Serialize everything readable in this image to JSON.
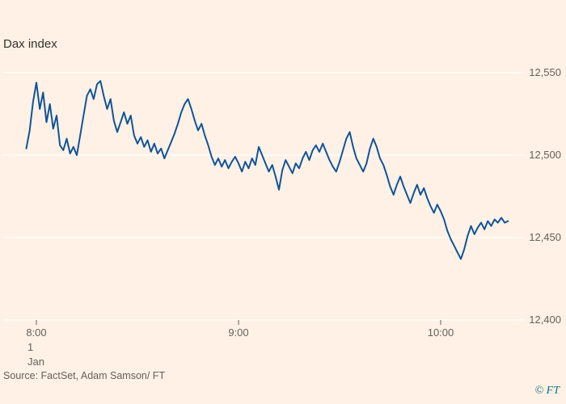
{
  "title": "Dax index",
  "source": "Source: FactSet, Adam Samson/ FT",
  "copyright": "© FT",
  "colors": {
    "background": "#FFF1E5",
    "line": "#0F5499",
    "grid": "#FFFFFF",
    "text": "#66605C",
    "title_text": "#33302E",
    "tick": "#66605C",
    "copyright": "#0D7680"
  },
  "chart_data": {
    "type": "line",
    "title": "Dax index",
    "xlabel": "",
    "ylabel": "",
    "ylim": [
      12400,
      12550
    ],
    "grid": "horizontal",
    "legend": "none",
    "yticks": [
      {
        "value": 12550,
        "label": "12,550"
      },
      {
        "value": 12500,
        "label": "12,500"
      },
      {
        "value": 12450,
        "label": "12,450"
      },
      {
        "value": 12400,
        "label": "12,400"
      }
    ],
    "xticks": [
      {
        "minute": 0,
        "label": "8:00"
      },
      {
        "minute": 60,
        "label": "9:00"
      },
      {
        "minute": 120,
        "label": "10:00"
      }
    ],
    "date_label": {
      "day": "1",
      "month": "Jan"
    },
    "x_unit": "minutes after 08:00",
    "series": [
      {
        "name": "Dax index",
        "minutes": [
          -3,
          -2,
          -1,
          0,
          1,
          2,
          3,
          4,
          5,
          6,
          7,
          8,
          9,
          10,
          11,
          12,
          13,
          14,
          15,
          16,
          17,
          18,
          19,
          20,
          21,
          22,
          23,
          24,
          25,
          26,
          27,
          28,
          29,
          30,
          31,
          32,
          33,
          34,
          35,
          36,
          37,
          38,
          39,
          40,
          41,
          42,
          43,
          44,
          45,
          46,
          47,
          48,
          49,
          50,
          51,
          52,
          53,
          54,
          55,
          56,
          57,
          58,
          59,
          60,
          61,
          62,
          63,
          64,
          65,
          66,
          67,
          68,
          69,
          70,
          71,
          72,
          73,
          74,
          75,
          76,
          77,
          78,
          79,
          80,
          81,
          82,
          83,
          84,
          85,
          86,
          87,
          88,
          89,
          90,
          91,
          92,
          93,
          94,
          95,
          96,
          97,
          98,
          99,
          100,
          101,
          102,
          103,
          104,
          105,
          106,
          107,
          108,
          109,
          110,
          111,
          112,
          113,
          114,
          115,
          116,
          117,
          118,
          119,
          120,
          121,
          122,
          123,
          124,
          125,
          126,
          127,
          128,
          129,
          130,
          131,
          132,
          133,
          134,
          135,
          136,
          137,
          138,
          139,
          140
        ],
        "values": [
          12504,
          12515,
          12532,
          12544,
          12528,
          12538,
          12520,
          12531,
          12516,
          12524,
          12506,
          12503,
          12510,
          12501,
          12505,
          12500,
          12512,
          12524,
          12536,
          12540,
          12534,
          12543,
          12545,
          12536,
          12528,
          12534,
          12521,
          12514,
          12520,
          12526,
          12519,
          12524,
          12512,
          12507,
          12511,
          12505,
          12509,
          12502,
          12507,
          12501,
          12504,
          12498,
          12503,
          12508,
          12513,
          12519,
          12526,
          12531,
          12534,
          12528,
          12521,
          12515,
          12519,
          12512,
          12506,
          12499,
          12494,
          12498,
          12493,
          12497,
          12492,
          12496,
          12499,
          12495,
          12490,
          12496,
          12492,
          12498,
          12494,
          12505,
          12500,
          12495,
          12490,
          12494,
          12487,
          12479,
          12491,
          12497,
          12493,
          12489,
          12495,
          12492,
          12498,
          12502,
          12497,
          12503,
          12506,
          12502,
          12507,
          12502,
          12497,
          12493,
          12490,
          12496,
          12503,
          12510,
          12514,
          12505,
          12498,
          12494,
          12490,
          12495,
          12504,
          12510,
          12505,
          12498,
          12494,
          12488,
          12481,
          12476,
          12482,
          12487,
          12481,
          12476,
          12471,
          12477,
          12482,
          12476,
          12480,
          12474,
          12469,
          12465,
          12470,
          12466,
          12461,
          12454,
          12449,
          12445,
          12441,
          12437,
          12443,
          12451,
          12457,
          12452,
          12456,
          12459,
          12455,
          12460,
          12457,
          12461,
          12459,
          12462,
          12459,
          12460
        ]
      }
    ]
  }
}
